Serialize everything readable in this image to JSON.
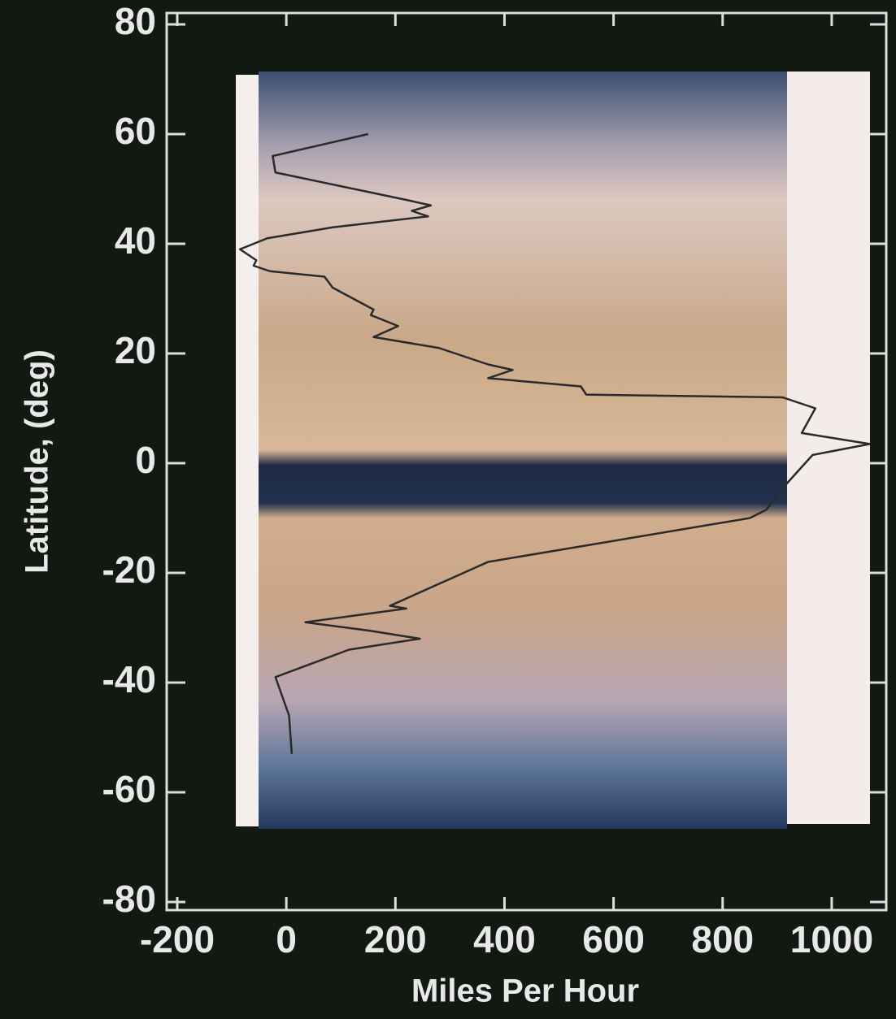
{
  "chart_data": {
    "type": "line",
    "x_label": "Miles Per Hour",
    "y_label": "Latitude, (deg)",
    "xlim": [
      -200,
      1100
    ],
    "xticks": [
      -200,
      0,
      200,
      400,
      600,
      800,
      1000
    ],
    "ylim": [
      -80,
      80
    ],
    "yticks": [
      80,
      60,
      40,
      20,
      0,
      -20,
      -40,
      -60,
      -80
    ],
    "series": [
      {
        "color": "#2a2a2a",
        "x": [
          150,
          -25,
          -20,
          220,
          265,
          230,
          260,
          85,
          -35,
          -85,
          -55,
          -60,
          -30,
          70,
          85,
          160,
          155,
          205,
          160,
          280,
          370,
          415,
          370,
          540,
          550,
          910,
          970,
          945,
          1070,
          965,
          915,
          880,
          850,
          370,
          190,
          220,
          35,
          150,
          245,
          115,
          -20,
          5,
          10
        ],
        "values": [
          60,
          56,
          53,
          48,
          47,
          46,
          45,
          43,
          41,
          39,
          37,
          36,
          35,
          34,
          32,
          28,
          27,
          25,
          23,
          21,
          18,
          17,
          15.5,
          14,
          12.5,
          12,
          10,
          5.5,
          3.5,
          1.5,
          -4,
          -8.5,
          -10,
          -18,
          -26,
          -26.5,
          -29,
          -30.5,
          -32,
          -34,
          -39,
          -46,
          -53
        ]
      }
    ]
  }
}
